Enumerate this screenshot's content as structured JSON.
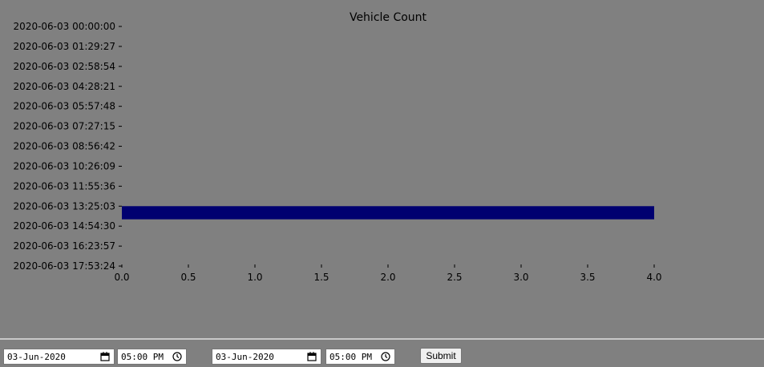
{
  "chart_data": {
    "type": "bar",
    "orientation": "horizontal",
    "title": "Vehicle Count",
    "xlabel": "",
    "ylabel": "",
    "categories": [
      "2020-06-03 00:00:00",
      "2020-06-03 01:29:27",
      "2020-06-03 02:58:54",
      "2020-06-03 04:28:21",
      "2020-06-03 05:57:48",
      "2020-06-03 07:27:15",
      "2020-06-03 08:56:42",
      "2020-06-03 10:26:09",
      "2020-06-03 11:55:36",
      "2020-06-03 13:25:03",
      "2020-06-03 14:54:30",
      "2020-06-03 16:23:57",
      "2020-06-03 17:53:24"
    ],
    "bars": [
      {
        "y_from": "2020-06-03 13:25:03",
        "y_to": "2020-06-03 14:24:00",
        "value": 4.0
      }
    ],
    "xlim": [
      0.0,
      4.0
    ],
    "xticks": [
      "0.0",
      "0.5",
      "1.0",
      "1.5",
      "2.0",
      "2.5",
      "3.0",
      "3.5",
      "4.0"
    ],
    "grid": false,
    "colors": {
      "bar": "#000070",
      "text": "#000000"
    }
  },
  "controls": {
    "start_date": "03-Jun-2020",
    "start_time": "05:00 PM",
    "end_date": "03-Jun-2020",
    "end_time": "05:00 PM",
    "submit_label": "Submit"
  }
}
